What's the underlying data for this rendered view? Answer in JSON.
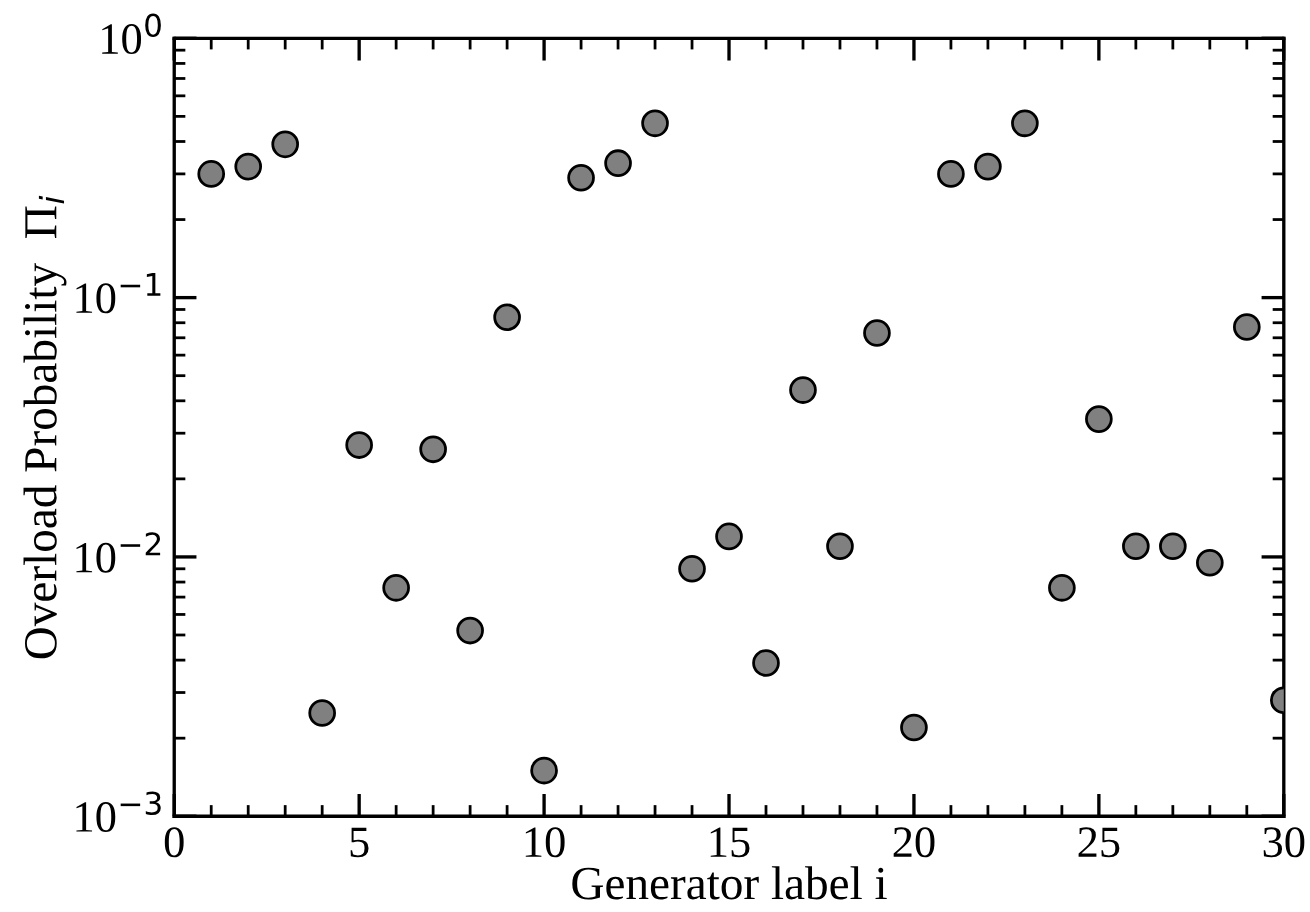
{
  "chart_data": {
    "type": "scatter",
    "xlabel": "Generator label i",
    "ylabel": "Overload Probability  Π$_{i}$",
    "x": [
      1,
      2,
      3,
      4,
      5,
      6,
      7,
      8,
      9,
      10,
      11,
      12,
      13,
      14,
      15,
      16,
      17,
      18,
      19,
      20,
      21,
      22,
      23,
      24,
      25,
      26,
      27,
      28,
      29,
      30
    ],
    "series": [
      {
        "color": "#808080",
        "values": [
          0.3,
          0.32,
          0.39,
          0.0025,
          0.027,
          0.0076,
          0.026,
          0.0052,
          0.084,
          0.0015,
          0.29,
          0.33,
          0.47,
          0.009,
          0.012,
          0.0039,
          0.044,
          0.011,
          0.073,
          0.0022,
          0.3,
          0.32,
          0.47,
          0.0076,
          0.034,
          0.011,
          0.011,
          0.0095,
          0.077,
          0.0028
        ]
      }
    ],
    "log": "y",
    "xlim": [
      0,
      30
    ],
    "xticks": [
      0,
      5,
      10,
      15,
      20,
      25,
      30
    ],
    "ylim": [
      0.001,
      1
    ],
    "yticks": [
      {
        "value": 0.001,
        "label": "10$^{−3}$"
      },
      {
        "value": 0.01,
        "label": "10$^{−2}$"
      },
      {
        "value": 0.1,
        "label": "10$^{−1}$"
      },
      {
        "value": 1,
        "label": "10$^{0}$"
      }
    ],
    "marker": "circle",
    "grid": false
  }
}
